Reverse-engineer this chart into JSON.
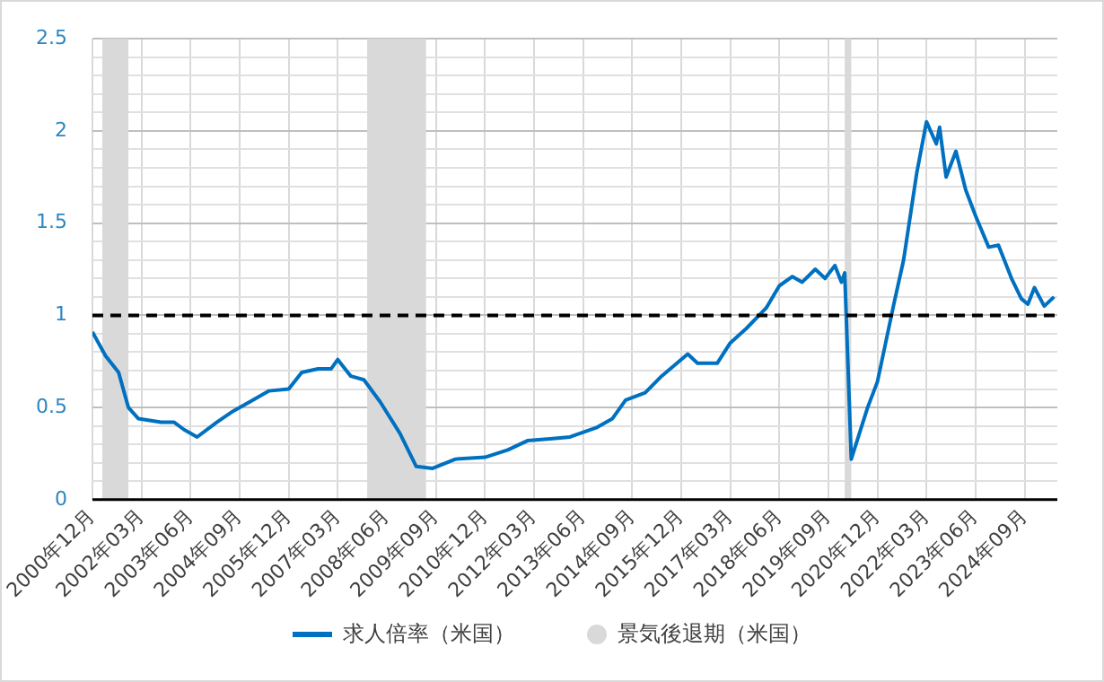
{
  "chart_data": {
    "type": "line",
    "x": [
      "2000-12",
      "2001-04",
      "2001-08",
      "2001-11",
      "2002-02",
      "2002-09",
      "2003-01",
      "2003-04",
      "2003-08",
      "2004-02",
      "2004-07",
      "2004-12",
      "2005-06",
      "2005-12",
      "2006-04",
      "2006-09",
      "2007-01",
      "2007-03",
      "2007-07",
      "2007-11",
      "2008-04",
      "2008-10",
      "2009-03",
      "2009-08",
      "2010-03",
      "2010-12",
      "2011-07",
      "2012-01",
      "2012-08",
      "2013-02",
      "2013-10",
      "2014-03",
      "2014-07",
      "2015-01",
      "2015-06",
      "2016-02",
      "2016-05",
      "2016-11",
      "2017-03",
      "2017-08",
      "2018-02",
      "2018-06",
      "2018-10",
      "2019-01",
      "2019-05",
      "2019-08",
      "2019-11",
      "2020-01",
      "2020-02",
      "2020-04",
      "2020-09",
      "2020-12",
      "2021-05",
      "2021-08",
      "2021-12",
      "2022-03",
      "2022-06",
      "2022-07",
      "2022-09",
      "2022-12",
      "2023-03",
      "2023-06",
      "2023-10",
      "2024-01",
      "2024-05",
      "2024-08",
      "2024-10",
      "2024-12",
      "2025-03",
      "2025-06"
    ],
    "series": [
      {
        "name": "求人倍率（米国）",
        "color": "#0070c0",
        "values": [
          0.91,
          0.78,
          0.69,
          0.5,
          0.44,
          0.42,
          0.42,
          0.38,
          0.34,
          0.42,
          0.48,
          0.53,
          0.59,
          0.6,
          0.69,
          0.71,
          0.71,
          0.76,
          0.67,
          0.65,
          0.53,
          0.36,
          0.18,
          0.17,
          0.22,
          0.23,
          0.27,
          0.32,
          0.33,
          0.34,
          0.39,
          0.44,
          0.54,
          0.58,
          0.67,
          0.79,
          0.74,
          0.74,
          0.85,
          0.93,
          1.04,
          1.16,
          1.21,
          1.18,
          1.25,
          1.2,
          1.27,
          1.18,
          1.23,
          0.22,
          0.5,
          0.64,
          1.06,
          1.3,
          1.77,
          2.05,
          1.93,
          2.02,
          1.75,
          1.89,
          1.68,
          1.54,
          1.37,
          1.38,
          1.2,
          1.09,
          1.06,
          1.15,
          1.05,
          1.1
        ]
      }
    ],
    "xlim": [
      "2000-12",
      "2025-07"
    ],
    "xticks": [
      {
        "value": "2000-12",
        "label": "2000年12月"
      },
      {
        "value": "2002-03",
        "label": "2002年03月"
      },
      {
        "value": "2003-06",
        "label": "2003年06月"
      },
      {
        "value": "2004-09",
        "label": "2004年09月"
      },
      {
        "value": "2005-12",
        "label": "2005年12月"
      },
      {
        "value": "2007-03",
        "label": "2007年03月"
      },
      {
        "value": "2008-06",
        "label": "2008年06月"
      },
      {
        "value": "2009-09",
        "label": "2009年09月"
      },
      {
        "value": "2010-12",
        "label": "2010年12月"
      },
      {
        "value": "2012-03",
        "label": "2012年03月"
      },
      {
        "value": "2013-06",
        "label": "2013年06月"
      },
      {
        "value": "2014-09",
        "label": "2014年09月"
      },
      {
        "value": "2015-12",
        "label": "2015年12月"
      },
      {
        "value": "2017-03",
        "label": "2017年03月"
      },
      {
        "value": "2018-06",
        "label": "2018年06月"
      },
      {
        "value": "2019-09",
        "label": "2019年09月"
      },
      {
        "value": "2020-12",
        "label": "2020年12月"
      },
      {
        "value": "2022-03",
        "label": "2022年03月"
      },
      {
        "value": "2023-06",
        "label": "2023年06月"
      },
      {
        "value": "2024-09",
        "label": "2024年09月"
      }
    ],
    "ylim": [
      0,
      2.5
    ],
    "yticks": [
      0,
      {
        "value": 0.1,
        "label": null
      },
      {
        "value": 0.2,
        "label": null
      },
      {
        "value": 0.3,
        "label": null
      },
      {
        "value": 0.4,
        "label": null
      },
      0.5,
      {
        "value": 0.6,
        "label": null
      },
      {
        "value": 0.7,
        "label": null
      },
      {
        "value": 0.8,
        "label": null
      },
      {
        "value": 0.9,
        "label": null
      },
      1,
      {
        "value": 1.1,
        "label": null
      },
      {
        "value": 1.2,
        "label": null
      },
      {
        "value": 1.3,
        "label": null
      },
      {
        "value": 1.4,
        "label": null
      },
      1.5,
      {
        "value": 1.6,
        "label": null
      },
      {
        "value": 1.7,
        "label": null
      },
      {
        "value": 1.8,
        "label": null
      },
      {
        "value": 1.9,
        "label": null
      },
      2,
      {
        "value": 2.1,
        "label": null
      },
      {
        "value": 2.2,
        "label": null
      },
      {
        "value": 2.3,
        "label": null
      },
      {
        "value": 2.4,
        "label": null
      },
      2.5
    ],
    "bands": [
      {
        "axis": "x",
        "from": "2001-03",
        "to": "2001-11",
        "label": "景気後退期（米国）",
        "color": "#d9d9d9"
      },
      {
        "axis": "x",
        "from": "2007-12",
        "to": "2009-06",
        "color": "#d9d9d9"
      },
      {
        "axis": "x",
        "from": "2020-02",
        "to": "2020-04",
        "color": "#d9d9d9"
      }
    ],
    "ref_lines": [
      {
        "axis": "y",
        "value": 1,
        "color": "#000000",
        "line_style": "dashed"
      }
    ],
    "grid": true,
    "legend": "bottom",
    "marker": "none",
    "line_style": "solid"
  }
}
